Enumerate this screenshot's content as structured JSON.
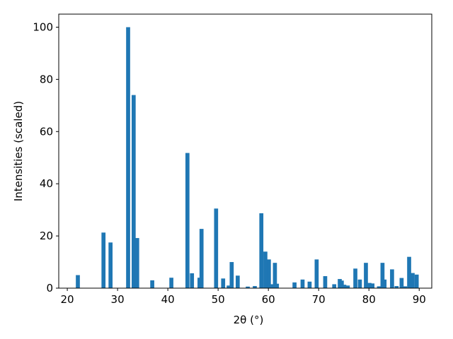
{
  "chart_data": {
    "type": "bar",
    "x_label": "2θ (°)",
    "y_label": "Intensities (scaled)",
    "color": "#1f77b4",
    "x": [
      22.1,
      27.2,
      28.6,
      32.1,
      33.2,
      33.9,
      36.9,
      40.7,
      43.9,
      44.8,
      46.3,
      46.7,
      49.6,
      51.0,
      52.1,
      52.7,
      53.9,
      55.9,
      57.3,
      58.6,
      59.4,
      60.1,
      60.7,
      61.3,
      61.7,
      65.2,
      66.8,
      68.2,
      69.6,
      71.3,
      73.1,
      74.2,
      74.6,
      75.1,
      75.8,
      77.3,
      78.2,
      79.4,
      80.1,
      80.7,
      82.0,
      82.7,
      83.1,
      84.6,
      85.5,
      86.5,
      87.2,
      88.0,
      88.7,
      89.5
    ],
    "values": [
      5,
      21.3,
      17.5,
      100,
      74,
      19.2,
      3,
      4,
      51.8,
      5.7,
      4,
      22.7,
      30.5,
      3.7,
      1,
      10,
      4.8,
      0.6,
      0.8,
      28.7,
      14,
      11,
      1.5,
      9.7,
      1.7,
      2.2,
      3.3,
      2.5,
      11,
      4.6,
      1.5,
      3.5,
      2.9,
      1.3,
      1,
      7.5,
      3.3,
      9.7,
      2,
      1.8,
      0.7,
      9.7,
      3.3,
      7.2,
      0.8,
      3.9,
      0.7,
      12,
      5.8,
      5.2
    ],
    "xlim": [
      18.3,
      92.5
    ],
    "ylim": [
      0,
      105
    ],
    "xticks": [
      20,
      30,
      40,
      50,
      60,
      70,
      80,
      90
    ],
    "yticks": [
      0,
      20,
      40,
      60,
      80,
      100
    ]
  }
}
